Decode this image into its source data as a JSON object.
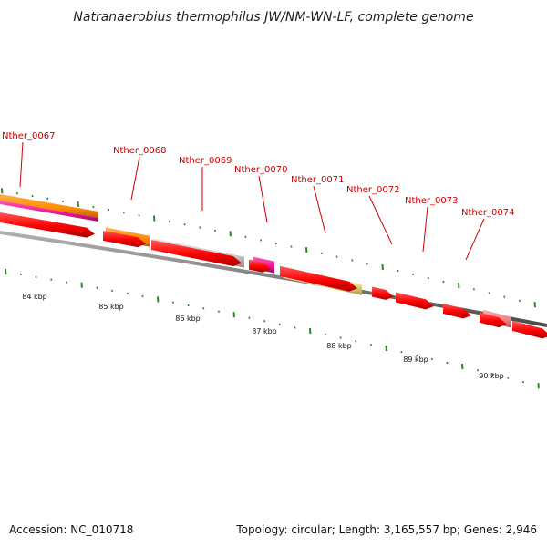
{
  "title": "Natranaerobius thermophilus JW/NM-WN-LF, complete genome",
  "genes": [
    {
      "label": "Nther_0067"
    },
    {
      "label": "Nther_0068"
    },
    {
      "label": "Nther_0069"
    },
    {
      "label": "Nther_0070"
    },
    {
      "label": "Nther_0071"
    },
    {
      "label": "Nther_0072"
    },
    {
      "label": "Nther_0073"
    },
    {
      "label": "Nther_0074"
    }
  ],
  "scale_ticks": [
    "84 kbp",
    "85 kbp",
    "86 kbp",
    "87 kbp",
    "88 kbp",
    "89 kbp",
    "90 kbp"
  ],
  "footer": {
    "accession": "Accession: NC_010718",
    "stats": "Topology: circular; Length: 3,165,557 bp; Genes: 2,946"
  },
  "colors": {
    "cds": "#ff0000",
    "orange": "#ff8c1a",
    "magenta": "#ee1493",
    "gray": "#c8c8c8",
    "khaki": "#f0e68c",
    "pink": "#f08080",
    "backbone": "#808080",
    "tick": "#228b22",
    "label": "#cc0000"
  }
}
